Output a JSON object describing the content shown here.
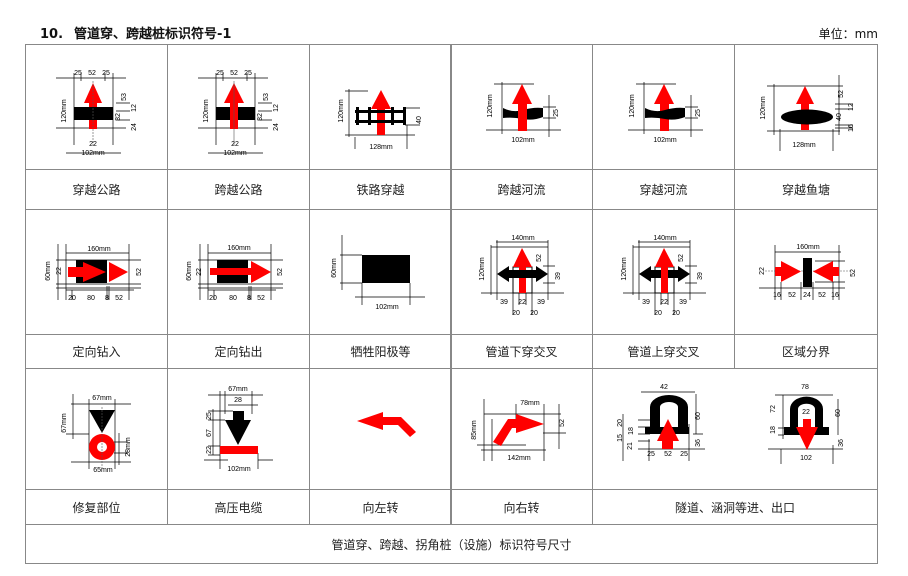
{
  "header": {
    "number": "10.",
    "title": "管道穿、跨越桩标识符号-1",
    "unit": "单位：mm"
  },
  "colors": {
    "symbol_red": "#ff0000",
    "symbol_black": "#000000",
    "grid": "#888888"
  },
  "cells": [
    {
      "label": "穿越公路",
      "dims": [
        "25",
        "52",
        "25",
        "120mm",
        "53",
        "12",
        "32",
        "24",
        "22",
        "102mm"
      ]
    },
    {
      "label": "跨越公路",
      "dims": [
        "25",
        "52",
        "25",
        "120mm",
        "53",
        "12",
        "32",
        "24",
        "22",
        "102mm"
      ]
    },
    {
      "label": "铁路穿越",
      "dims": [
        "120mm",
        "40",
        "128mm"
      ]
    },
    {
      "label": "跨越河流",
      "dims": [
        "120mm",
        "25",
        "102mm"
      ]
    },
    {
      "label": "穿越河流",
      "dims": [
        "120mm",
        "25",
        "102mm"
      ]
    },
    {
      "label": "穿越鱼塘",
      "dims": [
        "120mm",
        "52",
        "12",
        "40",
        "16",
        "128mm"
      ]
    },
    {
      "label": "定向钻入",
      "dims": [
        "160mm",
        "60mm",
        "22",
        "52",
        "20",
        "80",
        "8",
        "52"
      ]
    },
    {
      "label": "定向钻出",
      "dims": [
        "160mm",
        "60mm",
        "22",
        "52",
        "20",
        "80",
        "8",
        "52"
      ]
    },
    {
      "label": "牺牲阳极等",
      "dims": [
        "60mm",
        "102mm"
      ]
    },
    {
      "label": "管道下穿交叉",
      "dims": [
        "140mm",
        "120mm",
        "52",
        "39",
        "39",
        "22",
        "39",
        "20",
        "20"
      ]
    },
    {
      "label": "管道上穿交叉",
      "dims": [
        "140mm",
        "120mm",
        "52",
        "39",
        "39",
        "22",
        "39",
        "20",
        "20"
      ]
    },
    {
      "label": "区域分界",
      "dims": [
        "160mm",
        "22",
        "52",
        "16",
        "52",
        "24",
        "52",
        "16"
      ]
    },
    {
      "label": "修复部位",
      "dims": [
        "67mm",
        "67mm",
        "28mm",
        "65mm"
      ]
    },
    {
      "label": "高压电缆",
      "dims": [
        "67mm",
        "28",
        "25",
        "67",
        "22",
        "102mm"
      ]
    },
    {
      "label": "向左转",
      "dims": []
    },
    {
      "label": "向右转",
      "dims": [
        "78mm",
        "52",
        "85mm",
        "142mm"
      ]
    },
    {
      "label": "隧道、涵洞等进、出口",
      "dims": [
        "42",
        "60",
        "20",
        "18",
        "15",
        "21",
        "36",
        "25",
        "52",
        "25",
        "78",
        "72",
        "60",
        "22",
        "18",
        "36",
        "102"
      ]
    }
  ],
  "footer": "管道穿、跨越、拐角桩（设施）标识符号尺寸"
}
